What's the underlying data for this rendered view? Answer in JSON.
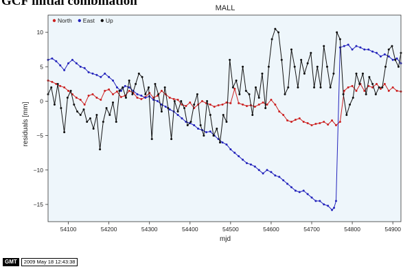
{
  "heading": "GCF initial combination",
  "footer": {
    "logo_text": "GMT",
    "timestamp": "2009 May 18 12:43:38"
  },
  "colors": {
    "north": "#cc2222",
    "east": "#2222bb",
    "up": "#111111",
    "plot_bg": "#eef6fb"
  },
  "chart_data": {
    "type": "line",
    "title": "MALL",
    "xlabel": "mjd",
    "ylabel": "residuals [mm]",
    "xlim": [
      54050,
      54920
    ],
    "ylim": [
      -17.5,
      12.5
    ],
    "xticks": [
      54100,
      54200,
      54300,
      54400,
      54500,
      54600,
      54700,
      54800,
      54900
    ],
    "yticks": [
      -15,
      -10,
      -5,
      0,
      5,
      10
    ],
    "legend_position": "top-left",
    "series": [
      {
        "name": "North",
        "color": "#cc2222",
        "x": [
          54050,
          54060,
          54070,
          54080,
          54090,
          54100,
          54110,
          54120,
          54130,
          54140,
          54150,
          54160,
          54170,
          54180,
          54190,
          54200,
          54210,
          54220,
          54230,
          54240,
          54250,
          54260,
          54270,
          54280,
          54290,
          54300,
          54310,
          54320,
          54330,
          54340,
          54350,
          54360,
          54370,
          54380,
          54390,
          54400,
          54410,
          54420,
          54430,
          54440,
          54450,
          54460,
          54470,
          54480,
          54490,
          54500,
          54510,
          54520,
          54530,
          54540,
          54550,
          54560,
          54570,
          54580,
          54590,
          54600,
          54610,
          54620,
          54630,
          54640,
          54650,
          54660,
          54670,
          54680,
          54690,
          54700,
          54710,
          54720,
          54730,
          54740,
          54750,
          54760,
          54770,
          54780,
          54790,
          54800,
          54810,
          54820,
          54830,
          54840,
          54850,
          54860,
          54870,
          54880,
          54890,
          54900,
          54910,
          54920
        ],
        "y": [
          3,
          2.8,
          2.5,
          2.2,
          2,
          1.5,
          1,
          0.5,
          0.2,
          -0.5,
          0.8,
          1,
          0.5,
          0.2,
          1.5,
          1.7,
          1,
          1.4,
          0.6,
          0.8,
          1.5,
          1.2,
          0.5,
          0.3,
          0.6,
          1.2,
          0.5,
          0.8,
          1.5,
          1,
          0.5,
          0.3,
          0.2,
          -0.5,
          -0.7,
          -0.2,
          -1,
          -0.5,
          0,
          -0.3,
          -0.5,
          -0.8,
          -0.6,
          -0.5,
          -0.2,
          -0.3,
          1.8,
          -0.3,
          -0.5,
          -0.7,
          -0.6,
          -0.8,
          -0.5,
          -0.2,
          -0.5,
          0.2,
          -0.5,
          -1.5,
          -2,
          -2.8,
          -3,
          -2.7,
          -2.5,
          -3,
          -3.2,
          -3.5,
          -3.3,
          -3.2,
          -3,
          -3.4,
          -2.8,
          -3.5,
          -3,
          1.5,
          2,
          2.2,
          1.5,
          2.5,
          1.5,
          2.2,
          2,
          2.5,
          1.8,
          2.5,
          1.5,
          2,
          1.5,
          1.4
        ]
      },
      {
        "name": "East",
        "color": "#2222bb",
        "x": [
          54050,
          54060,
          54070,
          54080,
          54090,
          54100,
          54110,
          54120,
          54130,
          54140,
          54150,
          54160,
          54170,
          54180,
          54190,
          54200,
          54210,
          54220,
          54230,
          54240,
          54250,
          54260,
          54270,
          54280,
          54290,
          54300,
          54310,
          54320,
          54330,
          54340,
          54350,
          54360,
          54370,
          54380,
          54390,
          54400,
          54410,
          54420,
          54430,
          54440,
          54450,
          54460,
          54470,
          54480,
          54490,
          54500,
          54510,
          54520,
          54530,
          54540,
          54550,
          54560,
          54570,
          54580,
          54590,
          54600,
          54610,
          54620,
          54630,
          54640,
          54650,
          54660,
          54670,
          54680,
          54690,
          54700,
          54710,
          54720,
          54730,
          54740,
          54750,
          54755,
          54760,
          54770,
          54780,
          54790,
          54800,
          54810,
          54820,
          54830,
          54840,
          54850,
          54860,
          54870,
          54880,
          54890,
          54900,
          54910,
          54920
        ],
        "y": [
          6,
          6.2,
          5.8,
          5.2,
          4.5,
          5.5,
          6,
          5.5,
          5,
          4.8,
          4.2,
          4,
          3.8,
          3.5,
          4,
          3.5,
          3,
          2,
          1.5,
          2.2,
          2,
          1.5,
          1,
          0.8,
          0.5,
          0.7,
          0.2,
          0,
          -0.5,
          -0.8,
          -1.2,
          -1.5,
          -2,
          -2.5,
          -3,
          -3.2,
          -3.5,
          -4,
          -4.2,
          -4.5,
          -4.4,
          -5,
          -5.5,
          -6,
          -6.3,
          -7,
          -7.5,
          -8,
          -8.5,
          -9,
          -9.2,
          -9.5,
          -10,
          -10.5,
          -10,
          -10.3,
          -10.8,
          -11,
          -11.5,
          -12,
          -12.5,
          -13,
          -13.2,
          -13,
          -13.5,
          -14,
          -14.5,
          -14.5,
          -15,
          -15.2,
          -15.8,
          -15.5,
          -14.5,
          7.8,
          8,
          8.2,
          7.5,
          8,
          7.8,
          7.5,
          7.5,
          7.2,
          7,
          6.5,
          6.8,
          6.5,
          6,
          6.2,
          5.5
        ]
      },
      {
        "name": "Up",
        "color": "#111111",
        "x": [
          54050,
          54058,
          54066,
          54074,
          54082,
          54090,
          54098,
          54106,
          54114,
          54122,
          54130,
          54138,
          54146,
          54154,
          54162,
          54170,
          54178,
          54186,
          54194,
          54202,
          54210,
          54218,
          54226,
          54234,
          54242,
          54250,
          54258,
          54266,
          54274,
          54282,
          54290,
          54298,
          54306,
          54314,
          54322,
          54330,
          54338,
          54346,
          54354,
          54362,
          54370,
          54378,
          54386,
          54394,
          54402,
          54410,
          54418,
          54426,
          54434,
          54442,
          54450,
          54458,
          54466,
          54474,
          54482,
          54490,
          54498,
          54506,
          54514,
          54522,
          54530,
          54538,
          54546,
          54554,
          54562,
          54570,
          54578,
          54586,
          54594,
          54602,
          54610,
          54618,
          54626,
          54634,
          54642,
          54650,
          54658,
          54666,
          54674,
          54682,
          54690,
          54698,
          54706,
          54714,
          54722,
          54730,
          54738,
          54746,
          54754,
          54762,
          54770,
          54778,
          54786,
          54794,
          54802,
          54810,
          54818,
          54826,
          54834,
          54842,
          54850,
          54858,
          54866,
          54874,
          54882,
          54890,
          54898,
          54906,
          54914,
          54920
        ],
        "y": [
          1,
          2,
          -0.5,
          2.5,
          -1,
          -4.5,
          0.5,
          1.5,
          -0.5,
          -1.5,
          -2,
          -1.2,
          -3,
          -2.5,
          -4,
          -2,
          -7,
          -3,
          -1,
          -2,
          -0.2,
          -3,
          1.5,
          2,
          0.5,
          3,
          1,
          2.5,
          4,
          3.5,
          1,
          2,
          -5.5,
          2.5,
          1,
          -1.5,
          2,
          -1,
          -5.5,
          0,
          -1.5,
          0,
          -1,
          -3.5,
          -3,
          -0.5,
          1,
          -3.5,
          -5,
          0,
          -2,
          -5,
          -4,
          -6,
          -2,
          -3,
          6,
          2,
          3,
          1,
          5,
          1.5,
          1,
          -2,
          2,
          0.5,
          4,
          -1,
          5,
          9,
          10.5,
          10,
          6,
          1,
          2,
          7.5,
          5,
          2,
          6,
          4,
          5.5,
          7,
          2,
          5,
          2,
          8,
          5,
          2,
          4,
          10,
          9,
          1,
          -2,
          -0.5,
          0.5,
          4,
          2.5,
          4,
          1,
          3.5,
          2.5,
          1,
          2,
          2,
          5,
          7.5,
          8,
          6,
          5,
          7
        ]
      }
    ]
  }
}
